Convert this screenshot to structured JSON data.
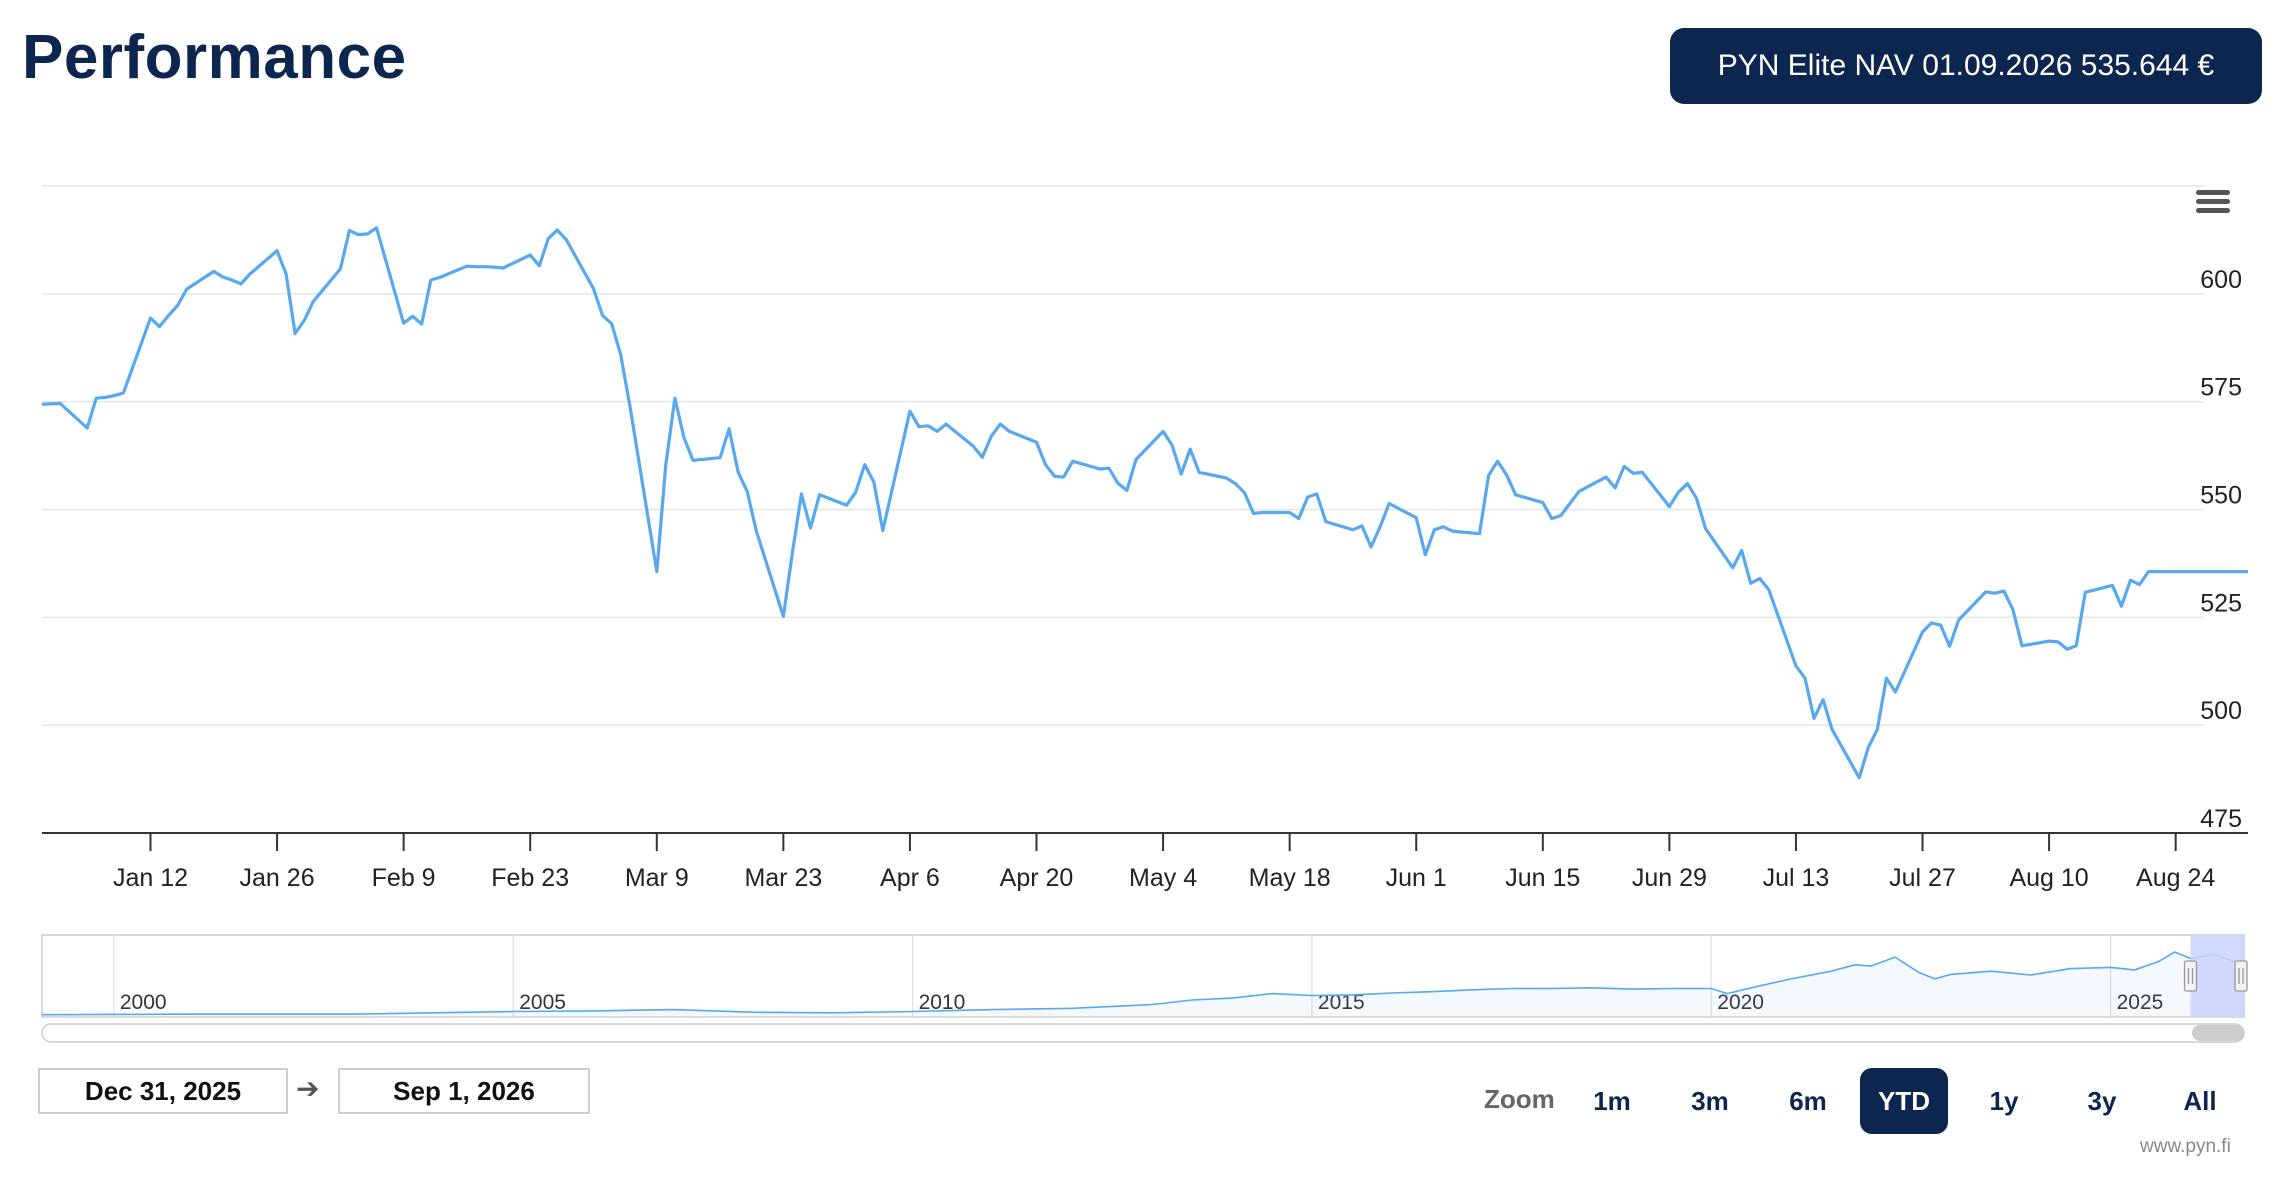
{
  "page": {
    "title": "Performance",
    "nav_badge": "PYN Elite NAV 01.09.2026 535.644 €",
    "credit": "www.pyn.fi"
  },
  "range": {
    "from": "Dec 31, 2025",
    "arrow": "➔",
    "to": "Sep 1, 2026"
  },
  "zoom": {
    "label": "Zoom",
    "buttons": [
      "1m",
      "3m",
      "6m",
      "YTD",
      "1y",
      "3y",
      "All"
    ],
    "selected": "YTD"
  },
  "colors": {
    "line": "#58a8ef",
    "navy": "#0d2650",
    "navigator_mask": "#c9d2fb"
  },
  "icons": {
    "menu": "hamburger-menu-icon",
    "arrow": "arrow-right-icon"
  },
  "chart_data": {
    "type": "line",
    "title": "",
    "xlabel": "",
    "ylabel": "",
    "ylim": [
      475,
      625
    ],
    "yticks": [
      475,
      500,
      525,
      550,
      575,
      600
    ],
    "grid": true,
    "y_axis_side": "right",
    "x_tick_labels": [
      "Jan 12",
      "Jan 26",
      "Feb 9",
      "Feb 23",
      "Mar 9",
      "Mar 23",
      "Apr 6",
      "Apr 20",
      "May 4",
      "May 18",
      "Jun 1",
      "Jun 15",
      "Jun 29",
      "Jul 13",
      "Jul 27",
      "Aug 10",
      "Aug 24"
    ],
    "x_tick_dates": [
      "2026-01-12",
      "2026-01-26",
      "2026-02-09",
      "2026-02-23",
      "2026-03-09",
      "2026-03-23",
      "2026-04-06",
      "2026-04-20",
      "2026-05-04",
      "2026-05-18",
      "2026-06-01",
      "2026-06-15",
      "2026-06-29",
      "2026-07-13",
      "2026-07-27",
      "2026-08-10",
      "2026-08-24"
    ],
    "x_range": [
      "2025-12-31",
      "2026-09-01"
    ],
    "series": [
      {
        "points": [
          [
            "2025-12-31",
            574.4
          ],
          [
            "2026-01-02",
            574.6
          ],
          [
            "2026-01-05",
            568.9
          ],
          [
            "2026-01-06",
            575.8
          ],
          [
            "2026-01-07",
            576.0
          ],
          [
            "2026-01-08",
            576.4
          ],
          [
            "2026-01-09",
            577.0
          ],
          [
            "2026-01-12",
            594.4
          ],
          [
            "2026-01-13",
            592.4
          ],
          [
            "2026-01-14",
            595.0
          ],
          [
            "2026-01-15",
            597.3
          ],
          [
            "2026-01-16",
            601.1
          ],
          [
            "2026-01-19",
            605.2
          ],
          [
            "2026-01-20",
            603.9
          ],
          [
            "2026-01-21",
            603.2
          ],
          [
            "2026-01-22",
            602.3
          ],
          [
            "2026-01-23",
            604.6
          ],
          [
            "2026-01-26",
            610.0
          ],
          [
            "2026-01-27",
            604.6
          ],
          [
            "2026-01-28",
            590.8
          ],
          [
            "2026-01-29",
            593.8
          ],
          [
            "2026-01-30",
            598.2
          ],
          [
            "2026-02-02",
            605.8
          ],
          [
            "2026-02-03",
            614.7
          ],
          [
            "2026-02-04",
            613.7
          ],
          [
            "2026-02-05",
            613.9
          ],
          [
            "2026-02-06",
            615.3
          ],
          [
            "2026-02-09",
            593.2
          ],
          [
            "2026-02-10",
            594.8
          ],
          [
            "2026-02-11",
            593.0
          ],
          [
            "2026-02-12",
            603.2
          ],
          [
            "2026-02-13",
            603.8
          ],
          [
            "2026-02-16",
            606.4
          ],
          [
            "2026-02-17",
            606.3
          ],
          [
            "2026-02-18",
            606.3
          ],
          [
            "2026-02-19",
            606.2
          ],
          [
            "2026-02-20",
            606.0
          ],
          [
            "2026-02-23",
            609.0
          ],
          [
            "2026-02-24",
            606.5
          ],
          [
            "2026-02-25",
            612.8
          ],
          [
            "2026-02-26",
            614.8
          ],
          [
            "2026-02-27",
            612.5
          ],
          [
            "2026-03-02",
            601.2
          ],
          [
            "2026-03-03",
            595.0
          ],
          [
            "2026-03-04",
            593.1
          ],
          [
            "2026-03-05",
            586.0
          ],
          [
            "2026-03-06",
            574.3
          ],
          [
            "2026-03-09",
            535.6
          ],
          [
            "2026-03-10",
            560.4
          ],
          [
            "2026-03-11",
            575.8
          ],
          [
            "2026-03-12",
            566.7
          ],
          [
            "2026-03-13",
            561.4
          ],
          [
            "2026-03-16",
            562.0
          ],
          [
            "2026-03-17",
            568.7
          ],
          [
            "2026-03-18",
            558.6
          ],
          [
            "2026-03-19",
            554.2
          ],
          [
            "2026-03-20",
            545.1
          ],
          [
            "2026-03-23",
            525.2
          ],
          [
            "2026-03-24",
            540.0
          ],
          [
            "2026-03-25",
            553.6
          ],
          [
            "2026-03-26",
            545.7
          ],
          [
            "2026-03-27",
            553.4
          ],
          [
            "2026-03-30",
            551.0
          ],
          [
            "2026-03-31",
            554.0
          ],
          [
            "2026-04-01",
            560.4
          ],
          [
            "2026-04-02",
            556.4
          ],
          [
            "2026-04-03",
            545.1
          ],
          [
            "2026-04-06",
            572.8
          ],
          [
            "2026-04-07",
            569.2
          ],
          [
            "2026-04-08",
            569.4
          ],
          [
            "2026-04-09",
            568.1
          ],
          [
            "2026-04-10",
            569.8
          ],
          [
            "2026-04-13",
            564.7
          ],
          [
            "2026-04-14",
            562.1
          ],
          [
            "2026-04-15",
            567.0
          ],
          [
            "2026-04-16",
            569.8
          ],
          [
            "2026-04-17",
            568.1
          ],
          [
            "2026-04-20",
            565.6
          ],
          [
            "2026-04-21",
            560.4
          ],
          [
            "2026-04-22",
            557.7
          ],
          [
            "2026-04-23",
            557.5
          ],
          [
            "2026-04-24",
            561.2
          ],
          [
            "2026-04-27",
            559.4
          ],
          [
            "2026-04-28",
            559.6
          ],
          [
            "2026-04-29",
            556.1
          ],
          [
            "2026-04-30",
            554.4
          ],
          [
            "2026-05-01",
            561.6
          ],
          [
            "2026-05-04",
            568.1
          ],
          [
            "2026-05-05",
            564.9
          ],
          [
            "2026-05-06",
            558.2
          ],
          [
            "2026-05-07",
            564.0
          ],
          [
            "2026-05-08",
            558.6
          ],
          [
            "2026-05-11",
            557.3
          ],
          [
            "2026-05-12",
            556.0
          ],
          [
            "2026-05-13",
            553.9
          ],
          [
            "2026-05-14",
            549.1
          ],
          [
            "2026-05-15",
            549.3
          ],
          [
            "2026-05-18",
            549.3
          ],
          [
            "2026-05-19",
            547.9
          ],
          [
            "2026-05-20",
            552.9
          ],
          [
            "2026-05-21",
            553.6
          ],
          [
            "2026-05-22",
            547.2
          ],
          [
            "2026-05-25",
            545.3
          ],
          [
            "2026-05-26",
            546.2
          ],
          [
            "2026-05-27",
            541.3
          ],
          [
            "2026-05-28",
            546.0
          ],
          [
            "2026-05-29",
            551.4
          ],
          [
            "2026-06-01",
            548.1
          ],
          [
            "2026-06-02",
            539.5
          ],
          [
            "2026-06-03",
            545.3
          ],
          [
            "2026-06-04",
            546.0
          ],
          [
            "2026-06-05",
            545.0
          ],
          [
            "2026-06-08",
            544.4
          ],
          [
            "2026-06-09",
            557.9
          ],
          [
            "2026-06-10",
            561.2
          ],
          [
            "2026-06-11",
            558.0
          ],
          [
            "2026-06-12",
            553.4
          ],
          [
            "2026-06-15",
            551.6
          ],
          [
            "2026-06-16",
            547.9
          ],
          [
            "2026-06-17",
            548.6
          ],
          [
            "2026-06-18",
            551.4
          ],
          [
            "2026-06-19",
            554.2
          ],
          [
            "2026-06-22",
            557.5
          ],
          [
            "2026-06-23",
            555.0
          ],
          [
            "2026-06-24",
            560.0
          ],
          [
            "2026-06-25",
            558.4
          ],
          [
            "2026-06-26",
            558.6
          ],
          [
            "2026-06-29",
            550.7
          ],
          [
            "2026-06-30",
            554.0
          ],
          [
            "2026-07-01",
            556.0
          ],
          [
            "2026-07-02",
            552.6
          ],
          [
            "2026-07-03",
            545.6
          ],
          [
            "2026-07-06",
            536.5
          ],
          [
            "2026-07-07",
            540.5
          ],
          [
            "2026-07-08",
            532.9
          ],
          [
            "2026-07-09",
            534.0
          ],
          [
            "2026-07-10",
            531.4
          ],
          [
            "2026-07-13",
            513.7
          ],
          [
            "2026-07-14",
            510.9
          ],
          [
            "2026-07-15",
            501.6
          ],
          [
            "2026-07-16",
            505.9
          ],
          [
            "2026-07-17",
            499.0
          ],
          [
            "2026-07-20",
            487.8
          ],
          [
            "2026-07-21",
            494.8
          ],
          [
            "2026-07-22",
            499.0
          ],
          [
            "2026-07-23",
            510.9
          ],
          [
            "2026-07-24",
            507.7
          ],
          [
            "2026-07-27",
            521.6
          ],
          [
            "2026-07-28",
            523.7
          ],
          [
            "2026-07-29",
            523.2
          ],
          [
            "2026-07-30",
            518.3
          ],
          [
            "2026-07-31",
            524.4
          ],
          [
            "2026-08-03",
            530.9
          ],
          [
            "2026-08-04",
            530.6
          ],
          [
            "2026-08-05",
            531.1
          ],
          [
            "2026-08-06",
            526.8
          ],
          [
            "2026-08-07",
            518.4
          ],
          [
            "2026-08-10",
            519.5
          ],
          [
            "2026-08-11",
            519.3
          ],
          [
            "2026-08-12",
            517.6
          ],
          [
            "2026-08-13",
            518.4
          ],
          [
            "2026-08-14",
            530.8
          ],
          [
            "2026-08-17",
            532.4
          ],
          [
            "2026-08-18",
            527.6
          ],
          [
            "2026-08-19",
            533.6
          ],
          [
            "2026-08-20",
            532.6
          ],
          [
            "2026-08-21",
            535.6
          ],
          [
            "2026-08-24",
            535.6
          ],
          [
            "2026-09-01",
            535.6
          ]
        ]
      }
    ]
  },
  "navigator": {
    "year_labels": [
      "2000",
      "2005",
      "2010",
      "2015",
      "2020",
      "2025"
    ],
    "years": [
      2000,
      2005,
      2010,
      2015,
      2020,
      2025
    ],
    "year_range": [
      1999.1,
      2026.67
    ],
    "selected_from_year": 2026.0,
    "points": [
      [
        1999.1,
        0.02
      ],
      [
        2001.0,
        0.03
      ],
      [
        2003.0,
        0.03
      ],
      [
        2004.0,
        0.05
      ],
      [
        2005.0,
        0.07
      ],
      [
        2006.0,
        0.08
      ],
      [
        2007.0,
        0.1
      ],
      [
        2008.0,
        0.06
      ],
      [
        2009.0,
        0.05
      ],
      [
        2010.0,
        0.07
      ],
      [
        2011.0,
        0.1
      ],
      [
        2012.0,
        0.12
      ],
      [
        2013.0,
        0.18
      ],
      [
        2013.5,
        0.25
      ],
      [
        2014.0,
        0.28
      ],
      [
        2014.5,
        0.35
      ],
      [
        2015.0,
        0.32
      ],
      [
        2015.5,
        0.33
      ],
      [
        2016.0,
        0.36
      ],
      [
        2016.5,
        0.38
      ],
      [
        2017.0,
        0.41
      ],
      [
        2017.5,
        0.43
      ],
      [
        2018.0,
        0.43
      ],
      [
        2018.5,
        0.44
      ],
      [
        2019.0,
        0.42
      ],
      [
        2019.5,
        0.43
      ],
      [
        2020.0,
        0.43
      ],
      [
        2020.2,
        0.35
      ],
      [
        2020.5,
        0.44
      ],
      [
        2021.0,
        0.58
      ],
      [
        2021.5,
        0.7
      ],
      [
        2021.8,
        0.8
      ],
      [
        2022.0,
        0.78
      ],
      [
        2022.3,
        0.92
      ],
      [
        2022.6,
        0.68
      ],
      [
        2022.8,
        0.58
      ],
      [
        2023.0,
        0.65
      ],
      [
        2023.5,
        0.7
      ],
      [
        2024.0,
        0.64
      ],
      [
        2024.5,
        0.74
      ],
      [
        2025.0,
        0.76
      ],
      [
        2025.3,
        0.72
      ],
      [
        2025.6,
        0.85
      ],
      [
        2025.8,
        1.0
      ],
      [
        2026.0,
        0.9
      ],
      [
        2026.3,
        0.96
      ],
      [
        2026.67,
        0.8
      ]
    ]
  }
}
